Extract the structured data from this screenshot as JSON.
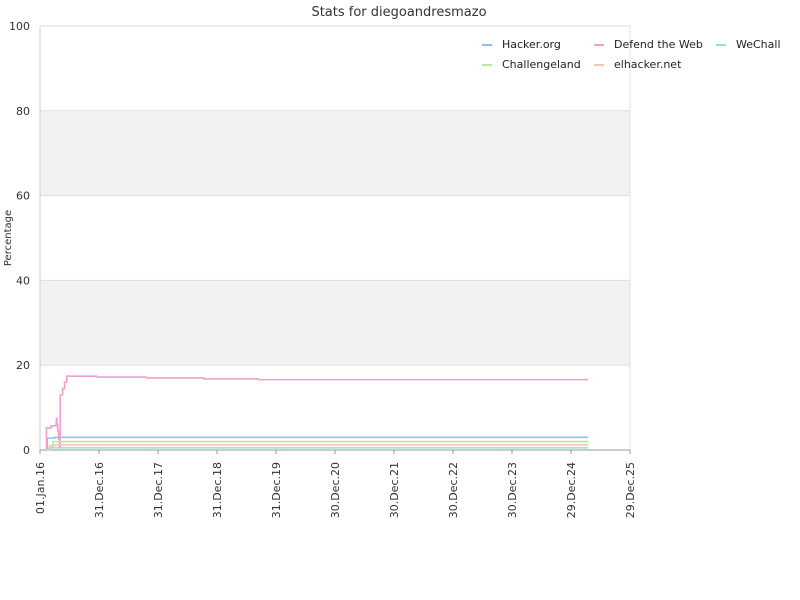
{
  "chart_data": {
    "type": "line",
    "title": "Stats for diegoandresmazo",
    "ylabel": "Percentage",
    "xlabel": "",
    "ylim": [
      0,
      100
    ],
    "yticks": [
      0,
      20,
      40,
      60,
      80,
      100
    ],
    "xticks": [
      "01.Jan.16",
      "31.Dec.16",
      "31.Dec.17",
      "31.Dec.18",
      "31.Dec.19",
      "30.Dec.20",
      "30.Dec.21",
      "30.Dec.22",
      "30.Dec.23",
      "29.Dec.24",
      "29.Dec.25"
    ],
    "xrange": [
      "2016-01-01",
      "2025-12-29"
    ],
    "grid": true,
    "legend_position": "top-right",
    "series": [
      {
        "name": "Hacker.org",
        "color": "#8ec0e8",
        "points": [
          [
            "2016-02-07",
            0
          ],
          [
            "2016-02-15",
            2.8
          ],
          [
            "2016-04-01",
            3.0
          ],
          [
            "2016-05-01",
            3.0
          ],
          [
            "2025-04-15",
            3.0
          ]
        ]
      },
      {
        "name": "Defend the Web",
        "color": "#f0a0d0",
        "points": [
          [
            "2016-02-07",
            0
          ],
          [
            "2016-02-10",
            5.2
          ],
          [
            "2016-03-10",
            5.7
          ],
          [
            "2016-04-10",
            6.3
          ],
          [
            "2016-04-12",
            7.5
          ],
          [
            "2016-04-15",
            6.0
          ],
          [
            "2016-04-20",
            4.5
          ],
          [
            "2016-04-25",
            2.5
          ],
          [
            "2016-05-01",
            0.5
          ],
          [
            "2016-05-05",
            13.0
          ],
          [
            "2016-05-20",
            14.5
          ],
          [
            "2016-06-01",
            16.0
          ],
          [
            "2016-06-15",
            17.4
          ],
          [
            "2016-11-15",
            17.4
          ],
          [
            "2016-12-15",
            17.2
          ],
          [
            "2017-10-10",
            17.2
          ],
          [
            "2017-10-20",
            17.0
          ],
          [
            "2018-09-20",
            17.0
          ],
          [
            "2018-10-10",
            16.8
          ],
          [
            "2019-08-20",
            16.8
          ],
          [
            "2019-09-10",
            16.6
          ],
          [
            "2025-04-15",
            16.6
          ]
        ]
      },
      {
        "name": "WeChall",
        "color": "#90e0d0",
        "points": [
          [
            "2016-02-07",
            0
          ],
          [
            "2016-02-20",
            0.5
          ],
          [
            "2025-04-15",
            0.5
          ]
        ]
      },
      {
        "name": "Challengeland",
        "color": "#b8e8a8",
        "points": [
          [
            "2016-02-07",
            0
          ],
          [
            "2016-03-01",
            0.8
          ],
          [
            "2016-03-20",
            2.0
          ],
          [
            "2016-04-10",
            2.0
          ],
          [
            "2016-05-01",
            2.0
          ],
          [
            "2025-04-15",
            2.0
          ]
        ]
      },
      {
        "name": "elhacker.net",
        "color": "#f4c8b8",
        "points": [
          [
            "2016-02-07",
            0
          ],
          [
            "2016-03-01",
            1.0
          ],
          [
            "2016-04-01",
            1.2
          ],
          [
            "2025-04-15",
            1.2
          ]
        ]
      }
    ]
  }
}
